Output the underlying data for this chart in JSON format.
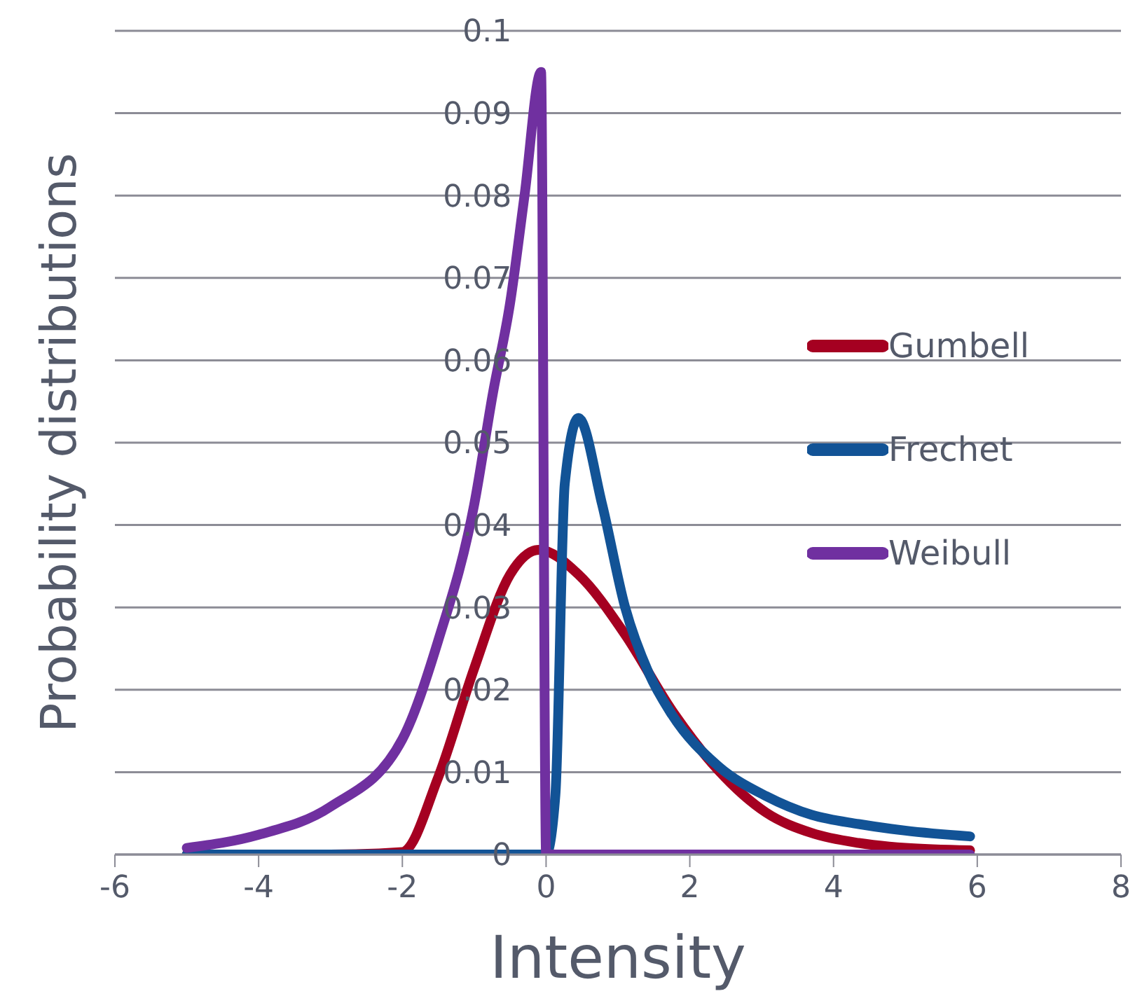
{
  "chart_data": {
    "type": "line",
    "xlabel": "Intensity",
    "ylabel": "Probability distributions",
    "xlim": [
      -6,
      8
    ],
    "xticks": [
      -6,
      -4,
      -2,
      0,
      2,
      4,
      6,
      8
    ],
    "ylim": [
      0,
      0.1
    ],
    "yticks": [
      0,
      0.01,
      0.02,
      0.03,
      0.04,
      0.05,
      0.06,
      0.07,
      0.08,
      0.09,
      0.1
    ],
    "grid": "y",
    "legend": "right",
    "marker": "none",
    "line_style": "solid",
    "series": [
      {
        "name": "Gumbell",
        "color": "#a50021",
        "x": [
          -5,
          -3,
          -2,
          -1.5,
          -1,
          -0.5,
          -0.1,
          0.45,
          1.1,
          1.75,
          2.4,
          3.06,
          3.7,
          4.35,
          5,
          5.9
        ],
        "values": [
          0,
          0,
          0.0003,
          0.0094,
          0.0226,
          0.034,
          0.037,
          0.034,
          0.0267,
          0.0175,
          0.0102,
          0.0051,
          0.0026,
          0.0014,
          0.0008,
          0.0005
        ]
      },
      {
        "name": "Frechet",
        "color": "#125396",
        "x": [
          -5,
          0,
          0.13,
          0.26,
          0.45,
          0.78,
          1.1,
          1.43,
          1.75,
          2.4,
          3.06,
          3.7,
          4.35,
          5,
          5.9
        ],
        "values": [
          0,
          0,
          0.0073,
          0.045,
          0.053,
          0.0425,
          0.03,
          0.022,
          0.017,
          0.0107,
          0.0071,
          0.0048,
          0.0037,
          0.0029,
          0.0022
        ]
      },
      {
        "name": "Weibull",
        "color": "#7030a0",
        "x": [
          -5,
          -4,
          -3,
          -2,
          -1.5,
          -1,
          -0.74,
          -0.5,
          -0.3,
          -0.07,
          0,
          3,
          5.9
        ],
        "values": [
          0.0008,
          0.0024,
          0.0058,
          0.014,
          0.026,
          0.0425,
          0.056,
          0.067,
          0.08,
          0.095,
          0,
          0,
          0
        ]
      }
    ]
  }
}
